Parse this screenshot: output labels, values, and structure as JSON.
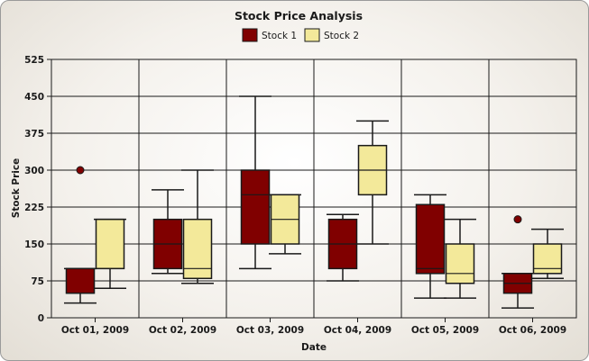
{
  "chart_data": {
    "type": "boxplot",
    "title": "Stock Price Analysis",
    "xlabel": "Date",
    "ylabel": "Stock Price",
    "ylim": [
      0,
      525
    ],
    "yticks": [
      0,
      75,
      150,
      225,
      300,
      375,
      450,
      525
    ],
    "categories": [
      "Oct 01, 2009",
      "Oct 02, 2009",
      "Oct 03, 2009",
      "Oct 04, 2009",
      "Oct 05, 2009",
      "Oct 06, 2009"
    ],
    "legend_position": "top-center",
    "grid": true,
    "series": [
      {
        "name": "Stock 1",
        "color": "#800000",
        "boxes": [
          {
            "low": 30,
            "q1": 50,
            "median": 50,
            "q3": 100,
            "high": 100,
            "outliers": [
              300
            ]
          },
          {
            "low": 90,
            "q1": 100,
            "median": 150,
            "q3": 200,
            "high": 260,
            "outliers": []
          },
          {
            "low": 100,
            "q1": 150,
            "median": 250,
            "q3": 300,
            "high": 450,
            "outliers": []
          },
          {
            "low": 75,
            "q1": 100,
            "median": 150,
            "q3": 200,
            "high": 210,
            "outliers": []
          },
          {
            "low": 40,
            "q1": 90,
            "median": 100,
            "q3": 230,
            "high": 250,
            "outliers": []
          },
          {
            "low": 20,
            "q1": 50,
            "median": 70,
            "q3": 90,
            "high": 90,
            "outliers": [
              200
            ]
          }
        ]
      },
      {
        "name": "Stock 2",
        "color": "#f3e99a",
        "boxes": [
          {
            "low": 60,
            "q1": 100,
            "median": 100,
            "q3": 200,
            "high": 200,
            "outliers": []
          },
          {
            "low": 70,
            "q1": 80,
            "median": 100,
            "q3": 200,
            "high": 300,
            "outliers": []
          },
          {
            "low": 130,
            "q1": 150,
            "median": 200,
            "q3": 250,
            "high": 250,
            "outliers": []
          },
          {
            "low": 150,
            "q1": 250,
            "median": 300,
            "q3": 350,
            "high": 400,
            "outliers": []
          },
          {
            "low": 40,
            "q1": 70,
            "median": 90,
            "q3": 150,
            "high": 200,
            "outliers": []
          },
          {
            "low": 80,
            "q1": 90,
            "median": 100,
            "q3": 150,
            "high": 180,
            "outliers": []
          }
        ]
      }
    ]
  }
}
